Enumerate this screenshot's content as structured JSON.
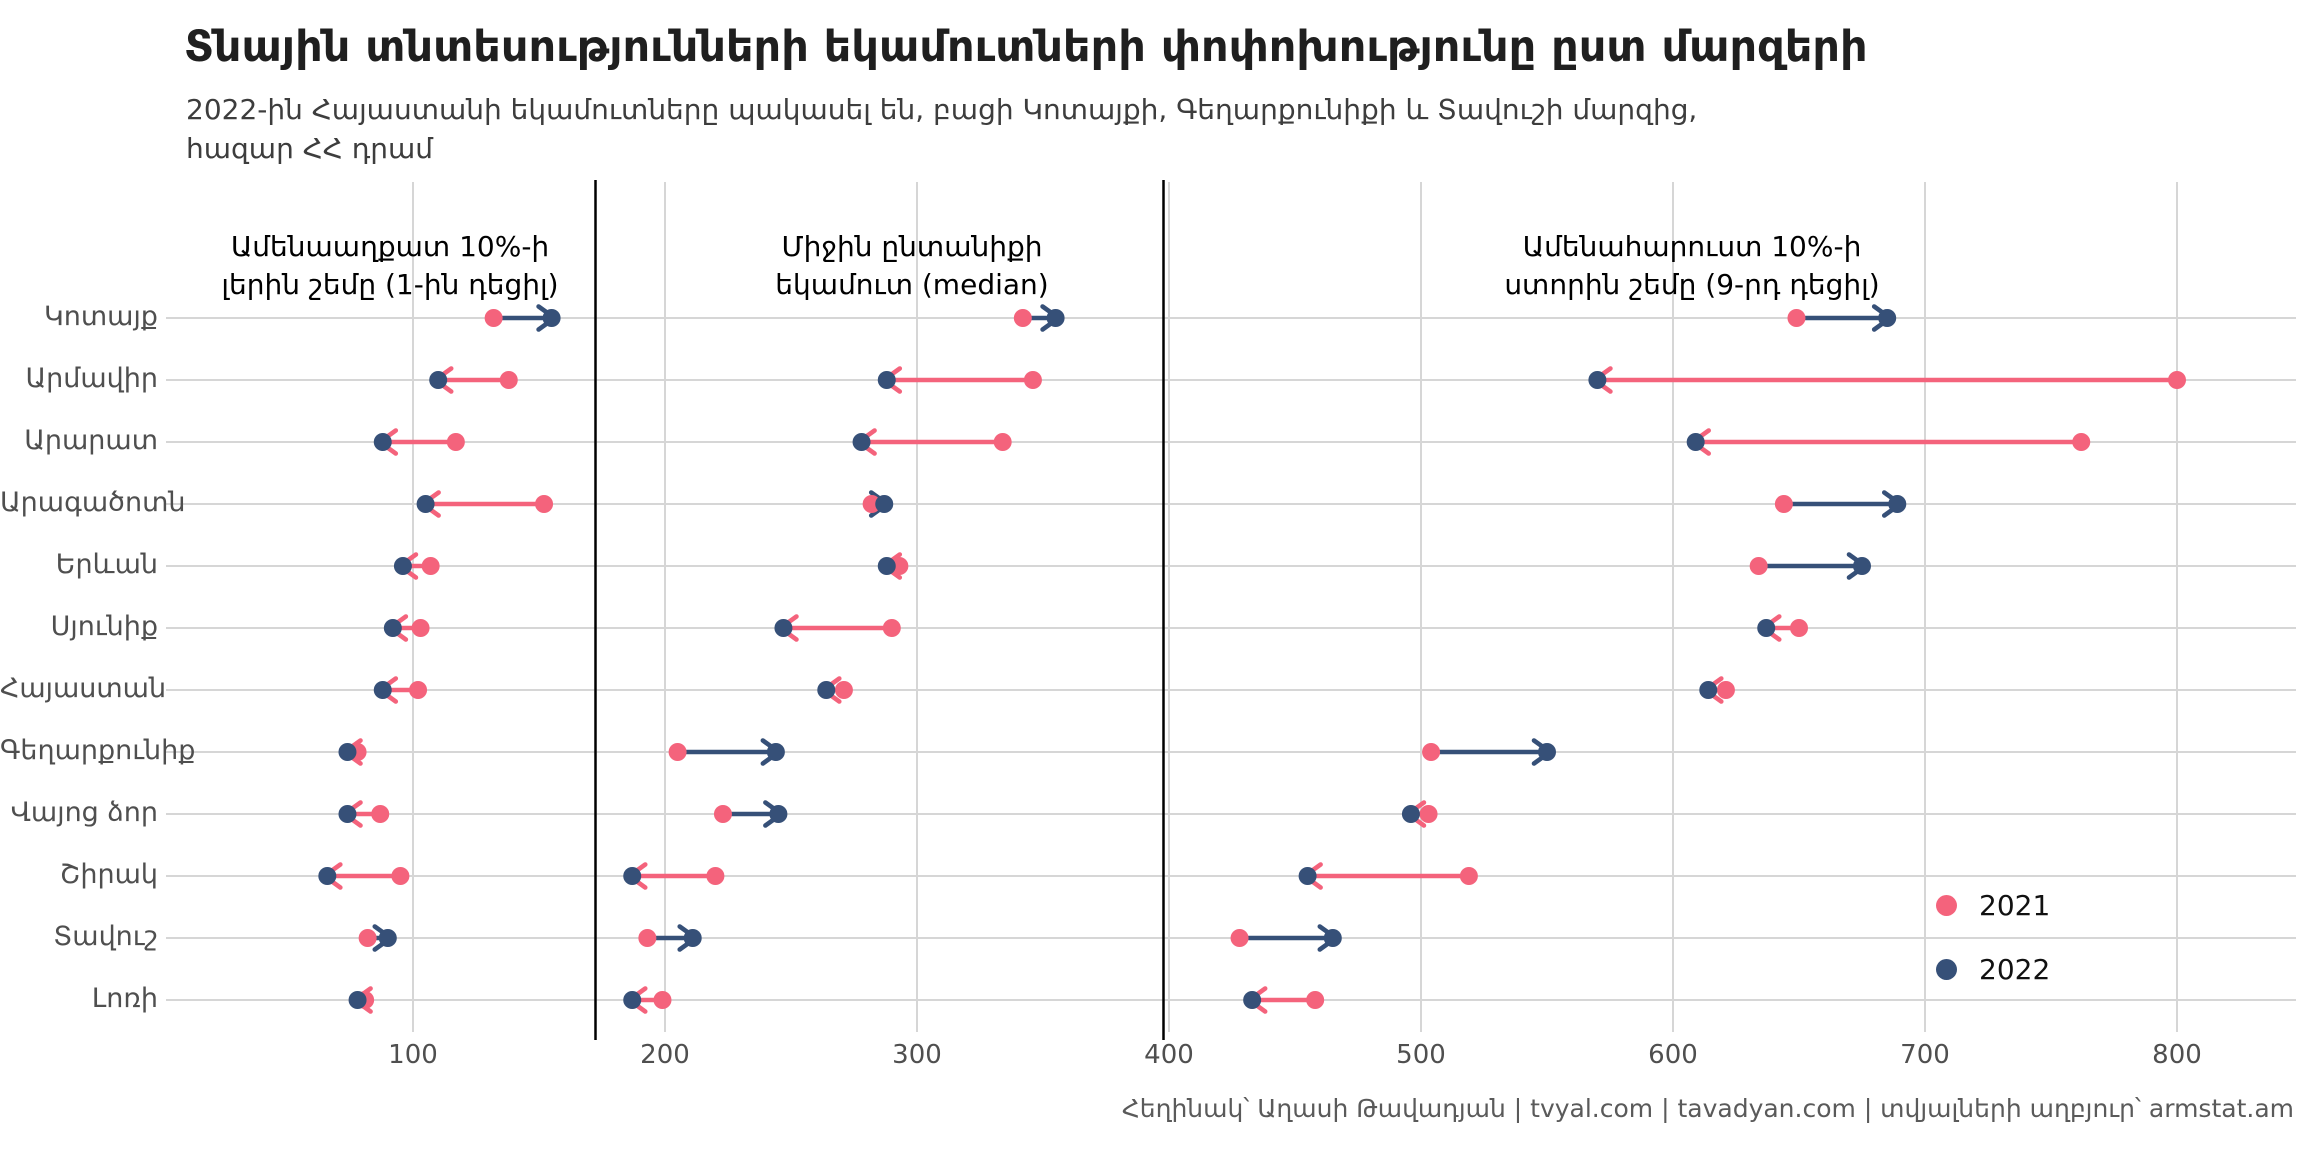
{
  "page": {
    "title": "Տնային տնտեսությունների եկամուտների փոփոխությունը ըստ մարզերի",
    "subtitle_line1": "2022-ին Հայաստանի եկամուտները պակասել են, բացի Կոտայքի, Գեղարքունիքի և Տավուշի մարզից,",
    "subtitle_line2": "հազար ՀՀ դրամ",
    "caption": "Հեղինակ՝ Աղասի Թավադյան   |   tvyal.com   |   tavadyan.com   |   տվյալների աղբյուր՝ armstat.am"
  },
  "chart_data": {
    "type": "dumbbell-arrow",
    "x_unit": "հազար ՀՀ դրամ",
    "categories": [
      "Կոտայք",
      "Արմավիր",
      "Արարատ",
      "Արագածոտն",
      "Երևան",
      "Սյունիք",
      "Հայաստան",
      "Գեղարքունիք",
      "Վայոց ձոր",
      "Շիրակ",
      "Տավուշ",
      "Լոռի"
    ],
    "xticks": [
      100,
      200,
      300,
      400,
      500,
      600,
      700,
      800
    ],
    "xlim": [
      40,
      850
    ],
    "grid": true,
    "panels": [
      {
        "id": "decile1",
        "header_line1": "Ամենաաղքատ 10%-ի",
        "header_line2": "լերին շեմը (1-ին դեցիլ)",
        "series": [
          {
            "name": "2021",
            "values": [
              132,
              138,
              117,
              152,
              107,
              103,
              102,
              78,
              87,
              95,
              82,
              81
            ]
          },
          {
            "name": "2022",
            "values": [
              155,
              110,
              88,
              105,
              96,
              92,
              88,
              74,
              74,
              66,
              90,
              78
            ]
          }
        ]
      },
      {
        "id": "median",
        "header_line1": "Միջին ընտանիքի",
        "header_line2": "եկամուտ (median)",
        "series": [
          {
            "name": "2021",
            "values": [
              342,
              346,
              334,
              282,
              293,
              290,
              271,
              205,
              223,
              220,
              193,
              199
            ]
          },
          {
            "name": "2022",
            "values": [
              355,
              288,
              278,
              287,
              288,
              247,
              264,
              244,
              245,
              187,
              211,
              187
            ]
          }
        ]
      },
      {
        "id": "decile9",
        "header_line1": "Ամենահարուստ 10%-ի",
        "header_line2": "ստորին շեմը (9-րդ դեցիլ)",
        "series": [
          {
            "name": "2021",
            "values": [
              649,
              800,
              762,
              644,
              634,
              650,
              621,
              504,
              503,
              519,
              428,
              458
            ]
          },
          {
            "name": "2022",
            "values": [
              685,
              570,
              609,
              689,
              675,
              637,
              614,
              550,
              496,
              455,
              465,
              433
            ]
          }
        ]
      }
    ],
    "legend": {
      "items": [
        {
          "label": "2021",
          "color": "#F4637C"
        },
        {
          "label": "2022",
          "color": "#365078"
        }
      ]
    },
    "colors": {
      "increase_arrow": "#365078",
      "decrease_arrow": "#F4637C",
      "gridline": "#D6D6D6",
      "divider": "#000000"
    }
  }
}
